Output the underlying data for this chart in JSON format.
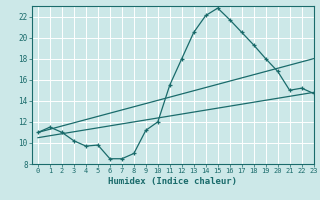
{
  "xlabel": "Humidex (Indice chaleur)",
  "bg_color": "#cce8e8",
  "line_color": "#1a6b6b",
  "grid_color": "#b8d8d8",
  "xlim": [
    -0.5,
    23
  ],
  "ylim": [
    8,
    23
  ],
  "xticks": [
    0,
    1,
    2,
    3,
    4,
    5,
    6,
    7,
    8,
    9,
    10,
    11,
    12,
    13,
    14,
    15,
    16,
    17,
    18,
    19,
    20,
    21,
    22,
    23
  ],
  "yticks": [
    8,
    10,
    12,
    14,
    16,
    18,
    20,
    22
  ],
  "main_x": [
    0,
    1,
    2,
    3,
    4,
    5,
    6,
    7,
    8,
    9,
    10,
    11,
    12,
    13,
    14,
    15,
    16,
    17,
    18,
    19,
    20,
    21,
    22,
    23
  ],
  "main_y": [
    11.0,
    11.5,
    11.0,
    10.2,
    9.7,
    9.8,
    8.5,
    8.5,
    9.0,
    11.2,
    12.0,
    15.5,
    18.0,
    20.5,
    22.1,
    22.8,
    21.7,
    20.5,
    19.3,
    18.0,
    16.8,
    15.0,
    15.2,
    14.7
  ],
  "line2_x": [
    0,
    23
  ],
  "line2_y": [
    11.0,
    18.0
  ],
  "line3_x": [
    0,
    23
  ],
  "line3_y": [
    10.5,
    14.8
  ]
}
